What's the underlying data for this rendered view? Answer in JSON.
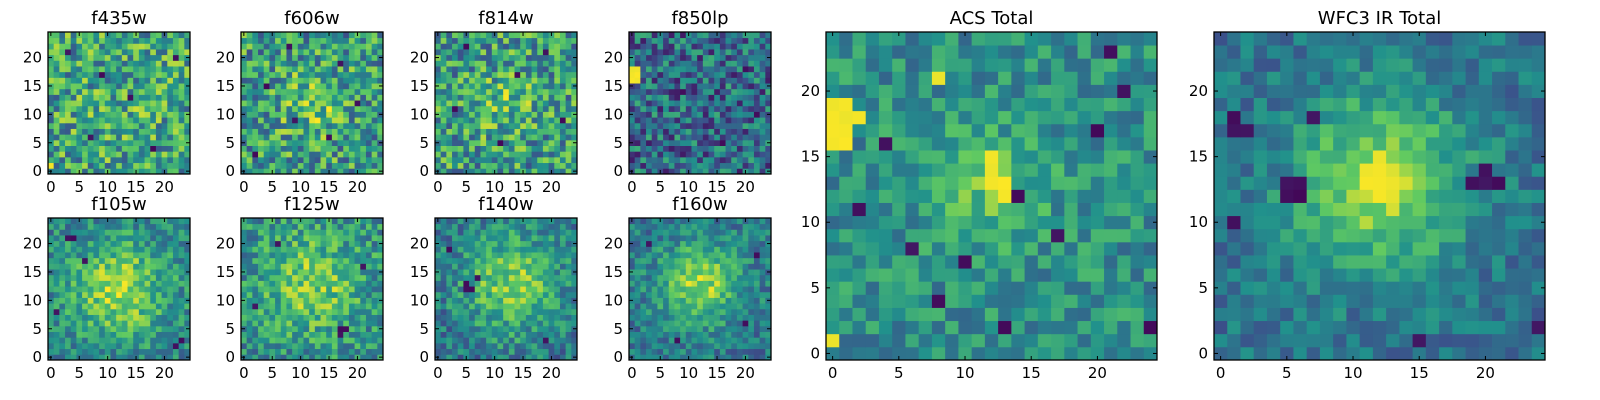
{
  "figure": {
    "colormap": "viridis",
    "colormap_stops": [
      "#440154",
      "#3b528b",
      "#21918c",
      "#5ec962",
      "#fde725"
    ]
  },
  "chart_data": [
    {
      "type": "heatmap",
      "title": "f435w",
      "size": 25,
      "xticks": [
        0,
        5,
        10,
        15,
        20
      ],
      "yticks": [
        0,
        5,
        10,
        15,
        20
      ],
      "seed": 11,
      "noise": 0.62,
      "blob_amp": 0.05,
      "blob_center": [
        12,
        12
      ],
      "blob_sigma": 5,
      "base": 0.58,
      "dark_pixels": [
        [
          3,
          21
        ],
        [
          14,
          13
        ],
        [
          22,
          20
        ],
        [
          7,
          6
        ],
        [
          18,
          4
        ],
        [
          9,
          17
        ]
      ],
      "bright_pixels": [
        [
          0,
          1
        ]
      ]
    },
    {
      "type": "heatmap",
      "title": "f606w",
      "size": 25,
      "xticks": [
        0,
        5,
        10,
        15,
        20
      ],
      "yticks": [
        0,
        5,
        10,
        15,
        20
      ],
      "seed": 23,
      "noise": 0.62,
      "blob_amp": 0.2,
      "blob_center": [
        12,
        12
      ],
      "blob_sigma": 4,
      "base": 0.55,
      "dark_pixels": [
        [
          8,
          22
        ],
        [
          4,
          15
        ],
        [
          15,
          6
        ],
        [
          20,
          12
        ],
        [
          2,
          3
        ],
        [
          17,
          19
        ],
        [
          9,
          9
        ]
      ],
      "bright_pixels": []
    },
    {
      "type": "heatmap",
      "title": "f814w",
      "size": 25,
      "xticks": [
        0,
        5,
        10,
        15,
        20
      ],
      "yticks": [
        0,
        5,
        10,
        15,
        20
      ],
      "seed": 37,
      "noise": 0.62,
      "blob_amp": 0.15,
      "blob_center": [
        12,
        12
      ],
      "blob_sigma": 4,
      "base": 0.55,
      "dark_pixels": [
        [
          5,
          22
        ],
        [
          19,
          21
        ],
        [
          11,
          5
        ],
        [
          22,
          9
        ],
        [
          3,
          11
        ],
        [
          14,
          17
        ]
      ],
      "bright_pixels": []
    },
    {
      "type": "heatmap",
      "title": "f850lp",
      "size": 25,
      "xticks": [
        0,
        5,
        10,
        15,
        20
      ],
      "yticks": [
        0,
        5,
        10,
        15,
        20
      ],
      "seed": 41,
      "noise": 0.55,
      "blob_amp": 0.0,
      "blob_center": [
        12,
        12
      ],
      "blob_sigma": 4,
      "base": 0.35,
      "dark_pixels": [
        [
          20,
          18
        ],
        [
          16,
          5
        ],
        [
          9,
          14
        ],
        [
          22,
          10
        ]
      ],
      "bright_pixels": [
        [
          0,
          17
        ],
        [
          1,
          17
        ],
        [
          0,
          18
        ],
        [
          1,
          18
        ],
        [
          0,
          16
        ],
        [
          1,
          16
        ]
      ]
    },
    {
      "type": "heatmap",
      "title": "f105w",
      "size": 25,
      "xticks": [
        0,
        5,
        10,
        15,
        20
      ],
      "yticks": [
        0,
        5,
        10,
        15,
        20
      ],
      "seed": 53,
      "noise": 0.4,
      "blob_amp": 0.4,
      "blob_center": [
        12,
        12
      ],
      "blob_sigma": 6,
      "base": 0.45,
      "dark_pixels": [
        [
          3,
          21
        ],
        [
          4,
          21
        ],
        [
          1,
          8
        ],
        [
          22,
          2
        ],
        [
          23,
          3
        ],
        [
          6,
          17
        ]
      ],
      "bright_pixels": []
    },
    {
      "type": "heatmap",
      "title": "f125w",
      "size": 25,
      "xticks": [
        0,
        5,
        10,
        15,
        20
      ],
      "yticks": [
        0,
        5,
        10,
        15,
        20
      ],
      "seed": 67,
      "noise": 0.45,
      "blob_amp": 0.3,
      "blob_center": [
        12,
        13
      ],
      "blob_sigma": 6,
      "base": 0.5,
      "dark_pixels": [
        [
          17,
          5
        ],
        [
          18,
          5
        ],
        [
          17,
          4
        ],
        [
          6,
          20
        ],
        [
          2,
          9
        ],
        [
          21,
          16
        ]
      ],
      "bright_pixels": []
    },
    {
      "type": "heatmap",
      "title": "f140w",
      "size": 25,
      "xticks": [
        0,
        5,
        10,
        15,
        20
      ],
      "yticks": [
        0,
        5,
        10,
        15,
        20
      ],
      "seed": 79,
      "noise": 0.4,
      "blob_amp": 0.4,
      "blob_center": [
        13,
        13
      ],
      "blob_sigma": 6,
      "base": 0.4,
      "dark_pixels": [
        [
          5,
          12
        ],
        [
          6,
          12
        ],
        [
          5,
          13
        ],
        [
          7,
          14
        ],
        [
          19,
          3
        ],
        [
          2,
          19
        ]
      ],
      "bright_pixels": []
    },
    {
      "type": "heatmap",
      "title": "f160w",
      "size": 25,
      "xticks": [
        0,
        5,
        10,
        15,
        20
      ],
      "yticks": [
        0,
        5,
        10,
        15,
        20
      ],
      "seed": 83,
      "noise": 0.35,
      "blob_amp": 0.45,
      "blob_center": [
        12,
        13
      ],
      "blob_sigma": 5,
      "base": 0.4,
      "dark_pixels": [
        [
          3,
          20
        ],
        [
          20,
          6
        ],
        [
          8,
          3
        ],
        [
          22,
          18
        ]
      ],
      "bright_pixels": []
    },
    {
      "type": "heatmap",
      "title": "ACS Total",
      "size": 25,
      "xticks": [
        0,
        5,
        10,
        15,
        20
      ],
      "yticks": [
        0,
        5,
        10,
        15,
        20
      ],
      "seed": 97,
      "noise": 0.35,
      "blob_amp": 0.22,
      "blob_center": [
        12,
        13
      ],
      "blob_sigma": 3,
      "base": 0.5,
      "dark_pixels": [
        [
          21,
          23
        ],
        [
          22,
          20
        ],
        [
          20,
          17
        ],
        [
          14,
          12
        ],
        [
          2,
          11
        ],
        [
          6,
          8
        ],
        [
          10,
          7
        ],
        [
          13,
          2
        ],
        [
          24,
          2
        ],
        [
          4,
          16
        ],
        [
          17,
          9
        ],
        [
          8,
          4
        ]
      ],
      "bright_pixels": [
        [
          0,
          19
        ],
        [
          1,
          19
        ],
        [
          0,
          18
        ],
        [
          1,
          18
        ],
        [
          2,
          18
        ],
        [
          0,
          17
        ],
        [
          1,
          17
        ],
        [
          0,
          16
        ],
        [
          1,
          16
        ],
        [
          8,
          21
        ],
        [
          12,
          15
        ],
        [
          12,
          14
        ],
        [
          13,
          13
        ],
        [
          12,
          13
        ],
        [
          13,
          12
        ],
        [
          0,
          1
        ]
      ]
    },
    {
      "type": "heatmap",
      "title": "WFC3 IR Total",
      "size": 25,
      "xticks": [
        0,
        5,
        10,
        15,
        20
      ],
      "yticks": [
        0,
        5,
        10,
        15,
        20
      ],
      "seed": 101,
      "noise": 0.28,
      "blob_amp": 0.5,
      "blob_center": [
        12,
        13
      ],
      "blob_sigma": 4.5,
      "base": 0.38,
      "dark_pixels": [
        [
          1,
          18
        ],
        [
          1,
          17
        ],
        [
          2,
          17
        ],
        [
          7,
          18
        ],
        [
          5,
          13
        ],
        [
          5,
          12
        ],
        [
          6,
          13
        ],
        [
          6,
          12
        ],
        [
          19,
          13
        ],
        [
          20,
          13
        ],
        [
          21,
          13
        ],
        [
          20,
          14
        ],
        [
          1,
          10
        ],
        [
          15,
          1
        ],
        [
          24,
          2
        ]
      ],
      "bright_pixels": [
        [
          12,
          14
        ],
        [
          13,
          13
        ],
        [
          12,
          13
        ],
        [
          12,
          12
        ],
        [
          11,
          13
        ]
      ]
    }
  ]
}
